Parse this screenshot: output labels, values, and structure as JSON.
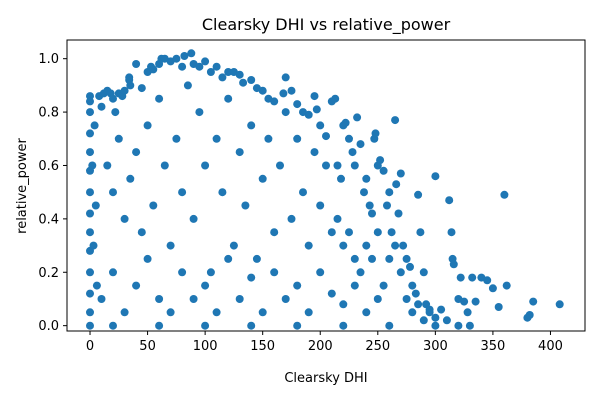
{
  "chart_data": {
    "type": "scatter",
    "title": "Clearsky DHI vs relative_power",
    "xlabel": "Clearsky DHI",
    "ylabel": "relative_power",
    "xlim": [
      -20,
      430
    ],
    "ylim": [
      -0.02,
      1.07
    ],
    "xticks": [
      0,
      50,
      100,
      150,
      200,
      250,
      300,
      350,
      400
    ],
    "yticks": [
      0.0,
      0.2,
      0.4,
      0.6,
      0.8,
      1.0
    ],
    "xtick_labels": [
      "0",
      "50",
      "100",
      "150",
      "200",
      "250",
      "300",
      "350",
      "400"
    ],
    "ytick_labels": [
      "0.0",
      "0.2",
      "0.4",
      "0.6",
      "0.8",
      "1.0"
    ],
    "grid": false,
    "legend": null,
    "marker_color": "#1f77b4",
    "series": [
      {
        "points": [
          [
            0,
            0.86
          ],
          [
            0,
            0.84
          ],
          [
            0,
            0.8
          ],
          [
            0,
            0.72
          ],
          [
            0,
            0.65
          ],
          [
            0,
            0.58
          ],
          [
            0,
            0.5
          ],
          [
            0,
            0.42
          ],
          [
            0,
            0.35
          ],
          [
            0,
            0.28
          ],
          [
            0,
            0.2
          ],
          [
            0,
            0.12
          ],
          [
            0,
            0.05
          ],
          [
            0,
            0.0
          ],
          [
            2,
            0.6
          ],
          [
            3,
            0.3
          ],
          [
            4,
            0.75
          ],
          [
            5,
            0.45
          ],
          [
            6,
            0.15
          ],
          [
            8,
            0.86
          ],
          [
            10,
            0.82
          ],
          [
            12,
            0.87
          ],
          [
            15,
            0.88
          ],
          [
            18,
            0.87
          ],
          [
            20,
            0.85
          ],
          [
            22,
            0.8
          ],
          [
            25,
            0.87
          ],
          [
            28,
            0.86
          ],
          [
            30,
            0.88
          ],
          [
            34,
            0.93
          ],
          [
            34,
            0.92
          ],
          [
            35,
            0.9
          ],
          [
            40,
            0.98
          ],
          [
            45,
            0.89
          ],
          [
            50,
            0.95
          ],
          [
            53,
            0.97
          ],
          [
            55,
            0.96
          ],
          [
            60,
            0.98
          ],
          [
            62,
            1.0
          ],
          [
            65,
            1.0
          ],
          [
            70,
            0.99
          ],
          [
            75,
            1.0
          ],
          [
            80,
            0.97
          ],
          [
            82,
            1.01
          ],
          [
            88,
            1.02
          ],
          [
            90,
            0.98
          ],
          [
            95,
            0.97
          ],
          [
            100,
            0.99
          ],
          [
            105,
            0.95
          ],
          [
            110,
            0.97
          ],
          [
            115,
            0.93
          ],
          [
            120,
            0.95
          ],
          [
            125,
            0.95
          ],
          [
            130,
            0.94
          ],
          [
            133,
            0.91
          ],
          [
            140,
            0.92
          ],
          [
            145,
            0.89
          ],
          [
            150,
            0.88
          ],
          [
            155,
            0.85
          ],
          [
            160,
            0.84
          ],
          [
            168,
            0.87
          ],
          [
            170,
            0.93
          ],
          [
            175,
            0.88
          ],
          [
            180,
            0.83
          ],
          [
            185,
            0.8
          ],
          [
            190,
            0.79
          ],
          [
            195,
            0.86
          ],
          [
            197,
            0.81
          ],
          [
            200,
            0.75
          ],
          [
            205,
            0.71
          ],
          [
            210,
            0.84
          ],
          [
            213,
            0.85
          ],
          [
            15,
            0.6
          ],
          [
            20,
            0.5
          ],
          [
            25,
            0.7
          ],
          [
            30,
            0.4
          ],
          [
            35,
            0.55
          ],
          [
            40,
            0.65
          ],
          [
            45,
            0.35
          ],
          [
            50,
            0.75
          ],
          [
            55,
            0.45
          ],
          [
            60,
            0.85
          ],
          [
            65,
            0.6
          ],
          [
            70,
            0.3
          ],
          [
            75,
            0.7
          ],
          [
            80,
            0.5
          ],
          [
            85,
            0.9
          ],
          [
            90,
            0.4
          ],
          [
            95,
            0.8
          ],
          [
            100,
            0.6
          ],
          [
            105,
            0.2
          ],
          [
            110,
            0.7
          ],
          [
            115,
            0.5
          ],
          [
            120,
            0.85
          ],
          [
            125,
            0.3
          ],
          [
            130,
            0.65
          ],
          [
            135,
            0.45
          ],
          [
            140,
            0.75
          ],
          [
            145,
            0.25
          ],
          [
            150,
            0.55
          ],
          [
            155,
            0.7
          ],
          [
            160,
            0.35
          ],
          [
            165,
            0.6
          ],
          [
            170,
            0.8
          ],
          [
            175,
            0.4
          ],
          [
            180,
            0.7
          ],
          [
            185,
            0.5
          ],
          [
            190,
            0.3
          ],
          [
            195,
            0.65
          ],
          [
            200,
            0.45
          ],
          [
            205,
            0.6
          ],
          [
            210,
            0.35
          ],
          [
            10,
            0.1
          ],
          [
            20,
            0.2
          ],
          [
            30,
            0.05
          ],
          [
            40,
            0.15
          ],
          [
            50,
            0.25
          ],
          [
            60,
            0.1
          ],
          [
            70,
            0.05
          ],
          [
            80,
            0.2
          ],
          [
            90,
            0.1
          ],
          [
            100,
            0.15
          ],
          [
            110,
            0.05
          ],
          [
            120,
            0.25
          ],
          [
            130,
            0.1
          ],
          [
            140,
            0.18
          ],
          [
            150,
            0.05
          ],
          [
            160,
            0.2
          ],
          [
            170,
            0.1
          ],
          [
            180,
            0.15
          ],
          [
            190,
            0.05
          ],
          [
            200,
            0.2
          ],
          [
            210,
            0.12
          ],
          [
            220,
            0.08
          ],
          [
            230,
            0.15
          ],
          [
            240,
            0.05
          ],
          [
            250,
            0.1
          ],
          [
            215,
            0.6
          ],
          [
            218,
            0.55
          ],
          [
            220,
            0.75
          ],
          [
            222,
            0.76
          ],
          [
            225,
            0.7
          ],
          [
            228,
            0.65
          ],
          [
            230,
            0.6
          ],
          [
            232,
            0.78
          ],
          [
            235,
            0.68
          ],
          [
            238,
            0.5
          ],
          [
            240,
            0.55
          ],
          [
            243,
            0.45
          ],
          [
            245,
            0.42
          ],
          [
            247,
            0.7
          ],
          [
            248,
            0.72
          ],
          [
            250,
            0.6
          ],
          [
            252,
            0.62
          ],
          [
            255,
            0.58
          ],
          [
            258,
            0.45
          ],
          [
            260,
            0.5
          ],
          [
            262,
            0.35
          ],
          [
            265,
            0.77
          ],
          [
            266,
            0.53
          ],
          [
            268,
            0.42
          ],
          [
            270,
            0.57
          ],
          [
            272,
            0.3
          ],
          [
            275,
            0.25
          ],
          [
            278,
            0.22
          ],
          [
            280,
            0.15
          ],
          [
            283,
            0.12
          ],
          [
            285,
            0.49
          ],
          [
            287,
            0.35
          ],
          [
            290,
            0.2
          ],
          [
            292,
            0.08
          ],
          [
            295,
            0.05
          ],
          [
            300,
            0.56
          ],
          [
            215,
            0.4
          ],
          [
            220,
            0.3
          ],
          [
            225,
            0.35
          ],
          [
            230,
            0.25
          ],
          [
            235,
            0.2
          ],
          [
            240,
            0.3
          ],
          [
            245,
            0.25
          ],
          [
            250,
            0.35
          ],
          [
            255,
            0.15
          ],
          [
            260,
            0.25
          ],
          [
            265,
            0.3
          ],
          [
            270,
            0.2
          ],
          [
            275,
            0.1
          ],
          [
            280,
            0.05
          ],
          [
            285,
            0.08
          ],
          [
            290,
            0.02
          ],
          [
            295,
            0.06
          ],
          [
            300,
            0.03
          ],
          [
            305,
            0.06
          ],
          [
            310,
            0.02
          ],
          [
            312,
            0.47
          ],
          [
            314,
            0.35
          ],
          [
            315,
            0.25
          ],
          [
            316,
            0.23
          ],
          [
            320,
            0.1
          ],
          [
            322,
            0.18
          ],
          [
            325,
            0.09
          ],
          [
            328,
            0.05
          ],
          [
            330,
            0.0
          ],
          [
            332,
            0.18
          ],
          [
            335,
            0.09
          ],
          [
            340,
            0.18
          ],
          [
            345,
            0.17
          ],
          [
            350,
            0.14
          ],
          [
            355,
            0.07
          ],
          [
            360,
            0.49
          ],
          [
            362,
            0.15
          ],
          [
            380,
            0.03
          ],
          [
            382,
            0.04
          ],
          [
            385,
            0.09
          ],
          [
            408,
            0.08
          ],
          [
            20,
            0.0
          ],
          [
            60,
            0.0
          ],
          [
            100,
            0.0
          ],
          [
            140,
            0.0
          ],
          [
            180,
            0.0
          ],
          [
            220,
            0.0
          ],
          [
            260,
            0.0
          ],
          [
            300,
            0.0
          ],
          [
            320,
            0.0
          ]
        ]
      }
    ]
  }
}
